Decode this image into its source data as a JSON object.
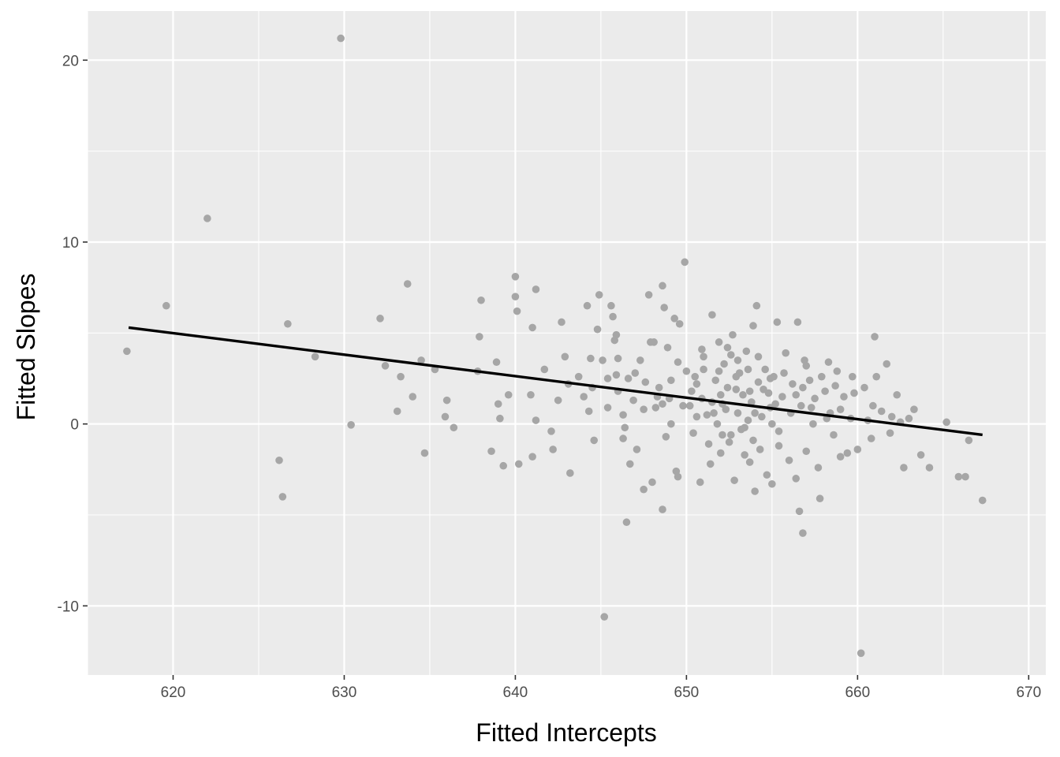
{
  "chart_data": {
    "type": "scatter",
    "title": "",
    "xlabel": "Fitted Intercepts",
    "ylabel": "Fitted Slopes",
    "xlim": [
      615,
      671
    ],
    "ylim": [
      -13.8,
      22.7
    ],
    "x_ticks": [
      620,
      630,
      640,
      650,
      660,
      670
    ],
    "y_ticks": [
      -10,
      0,
      10,
      20
    ],
    "grid": true,
    "legend": "none",
    "colors": {
      "panel": "#EBEBEB",
      "grid": "#FFFFFF",
      "points": "#A6A6A6",
      "line": "#000000"
    },
    "trend_line": {
      "x": [
        617.4,
        667.3
      ],
      "y": [
        5.3,
        -0.6
      ]
    },
    "series": [
      {
        "points": [
          [
            617.3,
            4.0
          ],
          [
            619.6,
            6.5
          ],
          [
            622.0,
            11.3
          ],
          [
            626.2,
            -2.0
          ],
          [
            626.4,
            -4.0
          ],
          [
            626.7,
            5.5
          ],
          [
            628.3,
            3.7
          ],
          [
            629.8,
            21.2
          ],
          [
            630.4,
            -0.05
          ],
          [
            632.1,
            5.8
          ],
          [
            632.4,
            3.2
          ],
          [
            633.1,
            0.7
          ],
          [
            633.3,
            2.6
          ],
          [
            633.7,
            7.7
          ],
          [
            634.0,
            1.5
          ],
          [
            634.5,
            3.5
          ],
          [
            634.7,
            -1.6
          ],
          [
            635.3,
            3.0
          ],
          [
            635.9,
            0.4
          ],
          [
            636.0,
            1.3
          ],
          [
            636.4,
            -0.2
          ],
          [
            637.8,
            2.9
          ],
          [
            637.9,
            4.8
          ],
          [
            638.0,
            6.8
          ],
          [
            638.6,
            -1.5
          ],
          [
            638.9,
            3.4
          ],
          [
            639.0,
            1.1
          ],
          [
            639.1,
            0.3
          ],
          [
            639.3,
            -2.3
          ],
          [
            639.6,
            1.6
          ],
          [
            640.0,
            8.1
          ],
          [
            640.0,
            7.0
          ],
          [
            640.1,
            6.2
          ],
          [
            640.2,
            -2.2
          ],
          [
            640.9,
            1.6
          ],
          [
            641.0,
            -1.8
          ],
          [
            641.0,
            5.3
          ],
          [
            641.2,
            7.4
          ],
          [
            641.2,
            0.2
          ],
          [
            641.7,
            3.0
          ],
          [
            642.1,
            -0.4
          ],
          [
            642.2,
            -1.4
          ],
          [
            642.5,
            1.3
          ],
          [
            642.7,
            5.6
          ],
          [
            642.9,
            3.7
          ],
          [
            643.1,
            2.2
          ],
          [
            643.2,
            -2.7
          ],
          [
            644.0,
            1.5
          ],
          [
            644.2,
            6.5
          ],
          [
            644.3,
            0.7
          ],
          [
            644.4,
            3.6
          ],
          [
            644.6,
            -0.9
          ],
          [
            644.8,
            5.2
          ],
          [
            644.9,
            7.1
          ],
          [
            645.1,
            3.5
          ],
          [
            645.2,
            -10.6
          ],
          [
            645.4,
            2.5
          ],
          [
            645.6,
            6.5
          ],
          [
            645.7,
            5.9
          ],
          [
            645.8,
            4.6
          ],
          [
            645.9,
            4.9
          ],
          [
            646.0,
            3.6
          ],
          [
            646.3,
            0.5
          ],
          [
            646.4,
            -0.2
          ],
          [
            646.5,
            -5.4
          ],
          [
            646.6,
            2.5
          ],
          [
            646.7,
            -2.2
          ],
          [
            646.9,
            1.3
          ],
          [
            647.1,
            -1.4
          ],
          [
            647.3,
            3.5
          ],
          [
            647.5,
            -3.6
          ],
          [
            647.6,
            2.3
          ],
          [
            647.8,
            7.1
          ],
          [
            648.0,
            -3.2
          ],
          [
            648.1,
            4.5
          ],
          [
            648.2,
            0.9
          ],
          [
            648.4,
            2.0
          ],
          [
            648.6,
            7.6
          ],
          [
            648.6,
            -4.7
          ],
          [
            648.7,
            6.4
          ],
          [
            648.9,
            4.2
          ],
          [
            649.0,
            1.4
          ],
          [
            649.1,
            0.0
          ],
          [
            649.3,
            5.8
          ],
          [
            649.4,
            -2.6
          ],
          [
            649.5,
            -2.9
          ],
          [
            649.6,
            5.5
          ],
          [
            649.9,
            8.9
          ],
          [
            650.0,
            2.9
          ],
          [
            650.2,
            1.0
          ],
          [
            650.4,
            -0.5
          ],
          [
            650.6,
            2.2
          ],
          [
            650.8,
            -3.2
          ],
          [
            650.9,
            4.1
          ],
          [
            651.0,
            3.0
          ],
          [
            651.2,
            0.5
          ],
          [
            651.4,
            -2.2
          ],
          [
            651.5,
            6.0
          ],
          [
            651.7,
            2.4
          ],
          [
            651.8,
            0.0
          ],
          [
            651.9,
            4.5
          ],
          [
            652.0,
            1.6
          ],
          [
            652.1,
            -0.6
          ],
          [
            652.2,
            3.3
          ],
          [
            652.4,
            2.0
          ],
          [
            652.5,
            -1.0
          ],
          [
            652.6,
            3.8
          ],
          [
            652.7,
            4.9
          ],
          [
            652.8,
            -3.1
          ],
          [
            652.9,
            1.9
          ],
          [
            653.0,
            0.6
          ],
          [
            653.1,
            2.8
          ],
          [
            653.2,
            -0.3
          ],
          [
            653.4,
            -1.7
          ],
          [
            653.5,
            4.0
          ],
          [
            653.6,
            3.0
          ],
          [
            653.7,
            -2.1
          ],
          [
            653.8,
            1.2
          ],
          [
            653.9,
            5.4
          ],
          [
            654.0,
            -3.7
          ],
          [
            654.1,
            6.5
          ],
          [
            654.2,
            2.3
          ],
          [
            654.3,
            -1.4
          ],
          [
            654.4,
            0.4
          ],
          [
            654.6,
            3.0
          ],
          [
            654.7,
            -2.8
          ],
          [
            654.8,
            1.7
          ],
          [
            654.9,
            0.9
          ],
          [
            655.0,
            -3.3
          ],
          [
            655.1,
            2.6
          ],
          [
            655.3,
            5.6
          ],
          [
            655.4,
            -0.4
          ],
          [
            655.6,
            1.5
          ],
          [
            655.8,
            3.9
          ],
          [
            656.0,
            -2.0
          ],
          [
            656.2,
            2.2
          ],
          [
            656.4,
            -3.0
          ],
          [
            656.5,
            5.6
          ],
          [
            656.6,
            -4.8
          ],
          [
            656.7,
            1.0
          ],
          [
            656.8,
            -6.0
          ],
          [
            656.9,
            3.5
          ],
          [
            657.0,
            -1.5
          ],
          [
            657.2,
            2.4
          ],
          [
            657.4,
            0.0
          ],
          [
            657.5,
            1.4
          ],
          [
            657.7,
            -2.4
          ],
          [
            657.8,
            -4.1
          ],
          [
            657.9,
            2.6
          ],
          [
            658.1,
            1.8
          ],
          [
            658.3,
            3.4
          ],
          [
            658.4,
            0.6
          ],
          [
            658.6,
            -0.6
          ],
          [
            658.8,
            2.9
          ],
          [
            659.0,
            -1.8
          ],
          [
            659.2,
            1.5
          ],
          [
            659.4,
            -1.6
          ],
          [
            659.6,
            0.3
          ],
          [
            659.8,
            1.7
          ],
          [
            660.0,
            -1.4
          ],
          [
            660.2,
            -12.6
          ],
          [
            660.4,
            2.0
          ],
          [
            660.6,
            0.2
          ],
          [
            660.8,
            -0.8
          ],
          [
            661.0,
            4.8
          ],
          [
            661.1,
            2.6
          ],
          [
            661.4,
            0.7
          ],
          [
            661.7,
            3.3
          ],
          [
            662.0,
            0.4
          ],
          [
            662.3,
            1.6
          ],
          [
            662.7,
            -2.4
          ],
          [
            663.0,
            0.3
          ],
          [
            663.3,
            0.8
          ],
          [
            663.7,
            -1.7
          ],
          [
            664.2,
            -2.4
          ],
          [
            665.2,
            0.1
          ],
          [
            665.9,
            -2.9
          ],
          [
            666.3,
            -2.9
          ],
          [
            666.5,
            -0.9
          ],
          [
            667.3,
            -4.2
          ],
          [
            651.5,
            1.2
          ],
          [
            652.3,
            0.8
          ],
          [
            653.3,
            1.6
          ],
          [
            652.9,
            2.6
          ],
          [
            651.9,
            2.9
          ],
          [
            654.5,
            1.9
          ],
          [
            653.6,
            0.2
          ],
          [
            655.2,
            1.1
          ],
          [
            650.3,
            1.8
          ],
          [
            649.8,
            1.0
          ],
          [
            648.3,
            1.5
          ],
          [
            647.5,
            0.8
          ],
          [
            656.1,
            0.6
          ],
          [
            657.3,
            0.9
          ],
          [
            658.2,
            0.3
          ],
          [
            654.9,
            2.5
          ],
          [
            653.0,
            3.5
          ],
          [
            651.0,
            3.7
          ],
          [
            650.6,
            0.4
          ],
          [
            652.6,
            -0.6
          ],
          [
            655.7,
            2.8
          ],
          [
            646.0,
            1.8
          ],
          [
            645.4,
            0.9
          ],
          [
            644.5,
            2.0
          ],
          [
            643.7,
            2.6
          ],
          [
            647.0,
            2.8
          ],
          [
            649.5,
            3.4
          ],
          [
            651.3,
            -1.1
          ],
          [
            653.9,
            -0.9
          ],
          [
            656.4,
            1.6
          ],
          [
            659.0,
            0.8
          ],
          [
            660.9,
            1.0
          ],
          [
            662.5,
            0.1
          ],
          [
            648.8,
            -0.7
          ],
          [
            646.3,
            -0.8
          ],
          [
            655.0,
            0.0
          ],
          [
            657.0,
            3.2
          ],
          [
            652.0,
            -1.6
          ],
          [
            650.9,
            1.4
          ],
          [
            654.2,
            3.7
          ],
          [
            653.7,
            1.8
          ],
          [
            652.4,
            4.2
          ],
          [
            651.6,
            0.6
          ],
          [
            649.1,
            2.4
          ],
          [
            647.9,
            4.5
          ],
          [
            645.9,
            2.7
          ],
          [
            658.7,
            2.1
          ],
          [
            661.9,
            -0.5
          ],
          [
            659.7,
            2.6
          ],
          [
            656.8,
            2.0
          ],
          [
            655.4,
            -1.2
          ],
          [
            654.0,
            0.6
          ],
          [
            653.4,
            -0.2
          ],
          [
            652.1,
            1.1
          ],
          [
            650.5,
            2.6
          ],
          [
            648.6,
            1.1
          ]
        ]
      }
    ]
  }
}
